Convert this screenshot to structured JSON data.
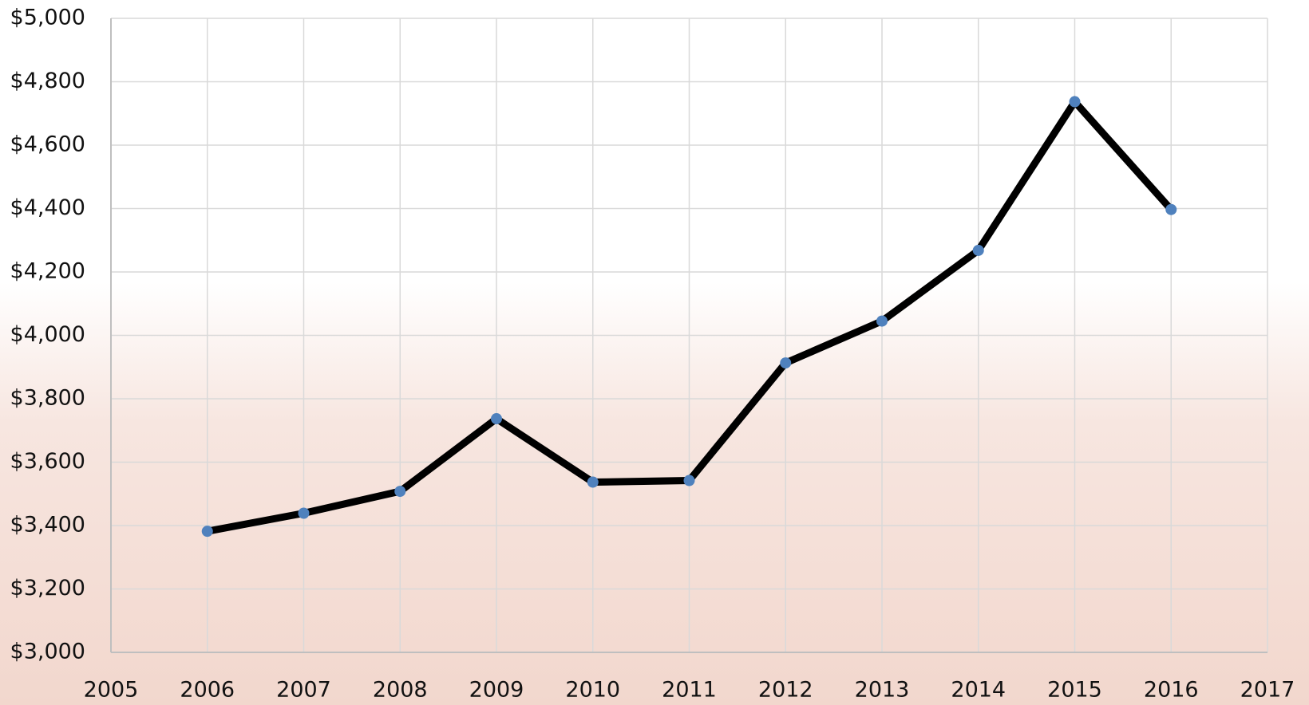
{
  "chart_data": {
    "type": "line",
    "x": [
      2006,
      2007,
      2008,
      2009,
      2010,
      2011,
      2012,
      2013,
      2014,
      2015,
      2016
    ],
    "values": [
      3382,
      3439,
      3508,
      3737,
      3537,
      3542,
      3913,
      4045,
      4268,
      4737,
      4397
    ],
    "color": "#000000",
    "marker_color": "#4f81bd",
    "xlim": [
      2005,
      2017
    ],
    "xticks": [
      2005,
      2006,
      2007,
      2008,
      2009,
      2010,
      2011,
      2012,
      2013,
      2014,
      2015,
      2016,
      2017
    ],
    "ylim": [
      3000,
      5000
    ],
    "yticks": [
      {
        "value": 3000,
        "label": "$3,000"
      },
      {
        "value": 3200,
        "label": "$3,200"
      },
      {
        "value": 3400,
        "label": "$3,400"
      },
      {
        "value": 3600,
        "label": "$3,600"
      },
      {
        "value": 3800,
        "label": "$3,800"
      },
      {
        "value": 4000,
        "label": "$4,000"
      },
      {
        "value": 4200,
        "label": "$4,200"
      },
      {
        "value": 4400,
        "label": "$4,400"
      },
      {
        "value": 4600,
        "label": "$4,600"
      },
      {
        "value": 4800,
        "label": "$4,800"
      },
      {
        "value": 5000,
        "label": "$5,000"
      }
    ],
    "grid": true
  }
}
